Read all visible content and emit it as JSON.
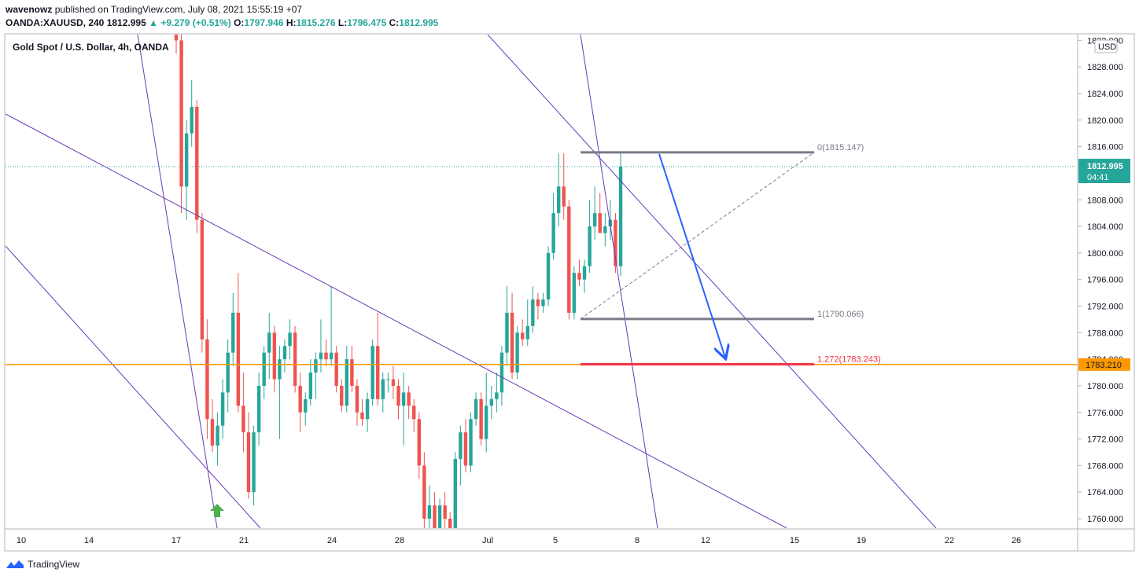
{
  "header": {
    "author": "wavenowz",
    "published_text": "published on TradingView.com, July 08, 2021 15:55:19 +07",
    "symbol": "OANDA:XAUUSD, 240",
    "last_price": "1812.995",
    "change": "▲ +9.279 (+0.51%)",
    "o_label": "O:",
    "o_value": "1797.946",
    "h_label": "H:",
    "h_value": "1815.276",
    "l_label": "L:",
    "l_value": "1796.475",
    "c_label": "C:",
    "c_value": "1812.995"
  },
  "legend": "Gold Spot / U.S. Dollar, 4h, OANDA",
  "footer": {
    "brand": "TradingView"
  },
  "colors": {
    "up": "#26a69a",
    "down": "#ef5350",
    "trendline": "#673ab7",
    "fib_level": "#787b86",
    "fib_ext": "#f23645",
    "horizontal": "#ff9800",
    "arrow": "#2962ff",
    "price_label_bg": "#26a69a"
  },
  "chart_data": {
    "type": "candlestick",
    "title": "Gold Spot / U.S. Dollar, 4h, OANDA",
    "currency": "USD",
    "ylim": [
      1759,
      1832
    ],
    "y_ticks": [
      "1832.000",
      "1828.000",
      "1824.000",
      "1820.000",
      "1816.000",
      "1812.000",
      "1808.000",
      "1804.000",
      "1800.000",
      "1796.000",
      "1792.000",
      "1788.000",
      "1784.000",
      "1780.000",
      "1776.000",
      "1772.000",
      "1768.000",
      "1764.000",
      "1760.000"
    ],
    "x_ticks": [
      "10",
      "14",
      "17",
      "21",
      "24",
      "28",
      "Jul",
      "5",
      "8",
      "12",
      "15",
      "19",
      "22",
      "26"
    ],
    "current_price": "1812.995",
    "countdown": "04:41",
    "horizontal_line": "1783.210",
    "fib_levels": [
      {
        "label": "0(1815.147)",
        "value": 1815.147
      },
      {
        "label": "1(1790.066)",
        "value": 1790.066
      },
      {
        "label": "1.272(1783.243)",
        "value": 1783.243
      }
    ],
    "candles": [
      [
        1835,
        1838,
        1830,
        1832
      ],
      [
        1832,
        1834,
        1806,
        1810
      ],
      [
        1810,
        1820,
        1805,
        1818
      ],
      [
        1818,
        1826,
        1816,
        1822
      ],
      [
        1822,
        1823,
        1803,
        1805
      ],
      [
        1805,
        1806,
        1785,
        1787
      ],
      [
        1787,
        1790,
        1772,
        1775
      ],
      [
        1775,
        1778,
        1770,
        1771
      ],
      [
        1771,
        1776,
        1768,
        1774
      ],
      [
        1774,
        1781,
        1772,
        1779
      ],
      [
        1779,
        1787,
        1776,
        1785
      ],
      [
        1785,
        1794,
        1783,
        1791
      ],
      [
        1791,
        1797,
        1776,
        1777
      ],
      [
        1777,
        1782,
        1770,
        1773
      ],
      [
        1773,
        1776,
        1763,
        1764
      ],
      [
        1764,
        1774,
        1762,
        1773
      ],
      [
        1773,
        1782,
        1771,
        1780
      ],
      [
        1780,
        1786,
        1778,
        1785
      ],
      [
        1785,
        1791,
        1781,
        1788
      ],
      [
        1788,
        1789,
        1779,
        1781
      ],
      [
        1781,
        1786,
        1772,
        1784
      ],
      [
        1784,
        1787,
        1782,
        1786
      ],
      [
        1786,
        1790,
        1784,
        1788
      ],
      [
        1788,
        1789,
        1779,
        1780
      ],
      [
        1780,
        1782,
        1773,
        1776
      ],
      [
        1776,
        1779,
        1774,
        1778
      ],
      [
        1778,
        1784,
        1777,
        1782
      ],
      [
        1782,
        1785,
        1778,
        1784
      ],
      [
        1784,
        1790,
        1782,
        1785
      ],
      [
        1785,
        1787,
        1783,
        1784
      ],
      [
        1784,
        1795,
        1783,
        1785
      ],
      [
        1785,
        1786,
        1779,
        1780
      ],
      [
        1780,
        1781,
        1776,
        1777
      ],
      [
        1777,
        1786,
        1776,
        1784
      ],
      [
        1784,
        1786,
        1779,
        1780
      ],
      [
        1780,
        1781,
        1774,
        1776
      ],
      [
        1776,
        1778,
        1774,
        1775
      ],
      [
        1775,
        1779,
        1773,
        1778
      ],
      [
        1778,
        1787,
        1777,
        1786
      ],
      [
        1786,
        1791,
        1777,
        1778
      ],
      [
        1778,
        1782,
        1776,
        1781
      ],
      [
        1781,
        1782,
        1779,
        1781
      ],
      [
        1781,
        1783,
        1778,
        1780
      ],
      [
        1780,
        1781,
        1775,
        1777
      ],
      [
        1777,
        1782,
        1771,
        1779
      ],
      [
        1779,
        1780,
        1775,
        1777
      ],
      [
        1777,
        1778,
        1773,
        1775
      ],
      [
        1775,
        1776,
        1766,
        1768
      ],
      [
        1768,
        1770,
        1757,
        1760
      ],
      [
        1760,
        1765,
        1756,
        1762
      ],
      [
        1762,
        1764,
        1755,
        1758
      ],
      [
        1758,
        1763,
        1755,
        1762
      ],
      [
        1762,
        1764,
        1758,
        1760
      ],
      [
        1760,
        1761,
        1754,
        1757
      ],
      [
        1757,
        1770,
        1756,
        1769
      ],
      [
        1769,
        1774,
        1765,
        1773
      ],
      [
        1773,
        1775,
        1767,
        1768
      ],
      [
        1768,
        1776,
        1767,
        1775
      ],
      [
        1775,
        1779,
        1774,
        1778
      ],
      [
        1778,
        1779,
        1771,
        1772
      ],
      [
        1772,
        1782,
        1770,
        1777
      ],
      [
        1777,
        1780,
        1775,
        1778
      ],
      [
        1778,
        1782,
        1776,
        1779
      ],
      [
        1779,
        1786,
        1777,
        1785
      ],
      [
        1785,
        1795,
        1783,
        1791
      ],
      [
        1791,
        1794,
        1781,
        1782
      ],
      [
        1782,
        1789,
        1781,
        1788
      ],
      [
        1788,
        1790,
        1786,
        1787
      ],
      [
        1787,
        1793,
        1786,
        1789
      ],
      [
        1789,
        1795,
        1788,
        1793
      ],
      [
        1793,
        1794,
        1790,
        1792
      ],
      [
        1792,
        1794,
        1791,
        1793
      ],
      [
        1793,
        1801,
        1792,
        1800
      ],
      [
        1800,
        1809,
        1799,
        1806
      ],
      [
        1806,
        1815,
        1804,
        1810
      ],
      [
        1810,
        1815,
        1805,
        1807
      ],
      [
        1807,
        1808,
        1790,
        1791
      ],
      [
        1791,
        1798,
        1790,
        1797
      ],
      [
        1797,
        1799,
        1795,
        1796
      ],
      [
        1796,
        1799,
        1794,
        1798
      ],
      [
        1798,
        1808,
        1797,
        1804
      ],
      [
        1804,
        1810,
        1802,
        1806
      ],
      [
        1806,
        1809,
        1803,
        1803
      ],
      [
        1803,
        1806,
        1801,
        1804
      ],
      [
        1804,
        1808,
        1802,
        1805
      ],
      [
        1805,
        1806,
        1797,
        1798
      ],
      [
        1798,
        1815.276,
        1796.475,
        1812.995
      ]
    ]
  }
}
